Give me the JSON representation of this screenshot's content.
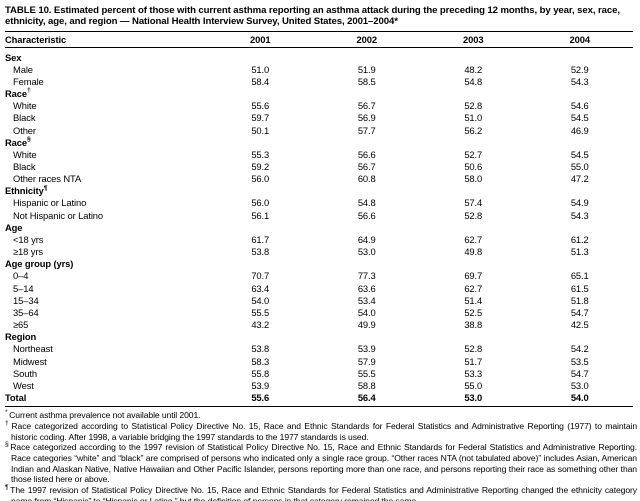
{
  "table": {
    "title": "TABLE 10. Estimated percent of those with current asthma reporting an asthma attack during the preceding 12 months, by year, sex, race, ethnicity, age, and region — National Health Interview Survey, United States, 2001–2004*",
    "columns": {
      "label": "Characteristic",
      "years": [
        "2001",
        "2002",
        "2003",
        "2004"
      ]
    },
    "rows": [
      {
        "type": "section",
        "label": "Sex",
        "marker": "",
        "values": []
      },
      {
        "type": "data",
        "label": "Male",
        "marker": "",
        "values": [
          "51.0",
          "51.9",
          "48.2",
          "52.9"
        ]
      },
      {
        "type": "data",
        "label": "Female",
        "marker": "",
        "values": [
          "58.4",
          "58.5",
          "54.8",
          "54.3"
        ]
      },
      {
        "type": "section",
        "label": "Race",
        "marker": "†",
        "values": []
      },
      {
        "type": "data",
        "label": "White",
        "marker": "",
        "values": [
          "55.6",
          "56.7",
          "52.8",
          "54.6"
        ]
      },
      {
        "type": "data",
        "label": "Black",
        "marker": "",
        "values": [
          "59.7",
          "56.9",
          "51.0",
          "54.5"
        ]
      },
      {
        "type": "data",
        "label": "Other",
        "marker": "",
        "values": [
          "50.1",
          "57.7",
          "56.2",
          "46.9"
        ]
      },
      {
        "type": "section",
        "label": "Race",
        "marker": "§",
        "values": []
      },
      {
        "type": "data",
        "label": "White",
        "marker": "",
        "values": [
          "55.3",
          "56.6",
          "52.7",
          "54.5"
        ]
      },
      {
        "type": "data",
        "label": "Black",
        "marker": "",
        "values": [
          "59.2",
          "56.7",
          "50.6",
          "55.0"
        ]
      },
      {
        "type": "data",
        "label": "Other races NTA",
        "marker": "",
        "values": [
          "56.0",
          "60.8",
          "58.0",
          "47.2"
        ]
      },
      {
        "type": "section",
        "label": "Ethnicity",
        "marker": "¶",
        "values": []
      },
      {
        "type": "data",
        "label": "Hispanic or Latino",
        "marker": "",
        "values": [
          "56.0",
          "54.8",
          "57.4",
          "54.9"
        ]
      },
      {
        "type": "data",
        "label": "Not Hispanic or Latino",
        "marker": "",
        "values": [
          "56.1",
          "56.6",
          "52.8",
          "54.3"
        ]
      },
      {
        "type": "section",
        "label": "Age",
        "marker": "",
        "values": []
      },
      {
        "type": "data",
        "label": "<18 yrs",
        "marker": "",
        "values": [
          "61.7",
          "64.9",
          "62.7",
          "61.2"
        ]
      },
      {
        "type": "data",
        "label": "≥18 yrs",
        "marker": "",
        "values": [
          "53.8",
          "53.0",
          "49.8",
          "51.3"
        ]
      },
      {
        "type": "section",
        "label": "Age group (yrs)",
        "marker": "",
        "values": []
      },
      {
        "type": "data",
        "label": "0–4",
        "marker": "",
        "values": [
          "70.7",
          "77.3",
          "69.7",
          "65.1"
        ]
      },
      {
        "type": "data",
        "label": "5–14",
        "marker": "",
        "values": [
          "63.4",
          "63.6",
          "62.7",
          "61.5"
        ]
      },
      {
        "type": "data",
        "label": "15–34",
        "marker": "",
        "values": [
          "54.0",
          "53.4",
          "51.4",
          "51.8"
        ]
      },
      {
        "type": "data",
        "label": "35–64",
        "marker": "",
        "values": [
          "55.5",
          "54.0",
          "52.5",
          "54.7"
        ]
      },
      {
        "type": "data",
        "label": "≥65",
        "marker": "",
        "values": [
          "43.2",
          "49.9",
          "38.8",
          "42.5"
        ]
      },
      {
        "type": "section",
        "label": "Region",
        "marker": "",
        "values": []
      },
      {
        "type": "data",
        "label": "Northeast",
        "marker": "",
        "values": [
          "53.8",
          "53.9",
          "52.8",
          "54.2"
        ]
      },
      {
        "type": "data",
        "label": "Midwest",
        "marker": "",
        "values": [
          "58.3",
          "57.9",
          "51.7",
          "53.5"
        ]
      },
      {
        "type": "data",
        "label": "South",
        "marker": "",
        "values": [
          "55.8",
          "55.5",
          "53.3",
          "54.7"
        ]
      },
      {
        "type": "data",
        "label": "West",
        "marker": "",
        "values": [
          "53.9",
          "58.8",
          "55.0",
          "53.0"
        ]
      },
      {
        "type": "total",
        "label": "Total",
        "marker": "",
        "values": [
          "55.6",
          "56.4",
          "53.0",
          "54.0"
        ]
      }
    ],
    "footnotes": [
      {
        "marker": "*",
        "text": "Current asthma prevalence not available until 2001."
      },
      {
        "marker": "†",
        "text": "Race categorized according to Statistical Policy Directive No. 15, Race and Ethnic Standards for Federal Statistics and Administrative Reporting (1977) to maintain historic coding. After 1998, a variable bridging the 1997 standards to the 1977 standards is used."
      },
      {
        "marker": "§",
        "text": "Race categorized according to the 1997 revision of Statistical Policy Directive No. 15, Race and Ethnic Standards for Federal Statistics and Administrative Reporting. Race categories “white” and “black” are comprised of persons who indicated only a single race group. “Other races NTA (not tabulated above)” includes Asian, American Indian and Alaskan Native, Native Hawaiian and Other Pacific Islander, persons reporting more than one race, and persons reporting their race as something other than those listed here or above."
      },
      {
        "marker": "¶",
        "text": "The 1997 revision of Statistical Policy Directive No. 15, Race and Ethnic Standards for Federal Statistics and Administrative Reporting changed the ethnicity category name from “Hispanic” to “Hispanic or Latino,” but the definition of persons in that category remained the same."
      }
    ]
  }
}
